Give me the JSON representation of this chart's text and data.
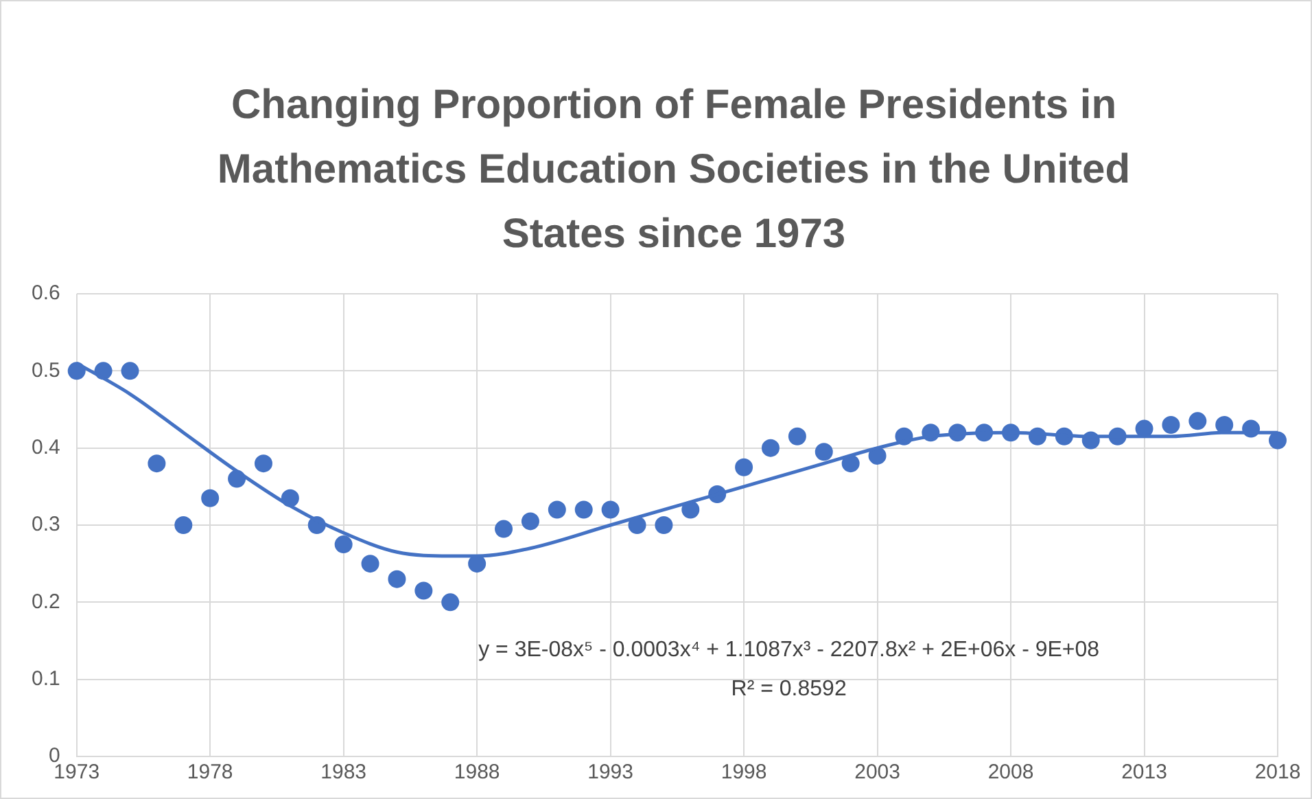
{
  "chart_data": {
    "type": "scatter",
    "title": "Changing Proportion of Female Presidents in Mathematics Education Societies in the United States since 1973",
    "x": [
      1973,
      1974,
      1975,
      1976,
      1977,
      1978,
      1979,
      1980,
      1981,
      1982,
      1983,
      1984,
      1985,
      1986,
      1987,
      1988,
      1989,
      1990,
      1991,
      1992,
      1993,
      1994,
      1995,
      1996,
      1997,
      1998,
      1999,
      2000,
      2001,
      2002,
      2003,
      2004,
      2005,
      2006,
      2007,
      2008,
      2009,
      2010,
      2011,
      2012,
      2013,
      2014,
      2015,
      2016,
      2017,
      2018
    ],
    "series": [
      {
        "color": "#4472c4",
        "values": [
          0.5,
          0.5,
          0.5,
          0.38,
          0.3,
          0.335,
          0.36,
          0.38,
          0.335,
          0.3,
          0.275,
          0.25,
          0.23,
          0.215,
          0.2,
          0.25,
          0.295,
          0.305,
          0.32,
          0.32,
          0.32,
          0.3,
          0.3,
          0.32,
          0.34,
          0.375,
          0.4,
          0.415,
          0.395,
          0.38,
          0.39,
          0.415,
          0.42,
          0.42,
          0.42,
          0.42,
          0.415,
          0.415,
          0.41,
          0.415,
          0.425,
          0.43,
          0.435,
          0.43,
          0.425,
          0.41
        ]
      },
      {
        "type": "line",
        "marker": "none",
        "color": "#4472c4",
        "x": [
          1973,
          1975,
          1977,
          1979,
          1981,
          1983,
          1985,
          1987,
          1988,
          1990,
          1993,
          1996,
          1999,
          2001,
          2003,
          2005,
          2008,
          2011,
          2014,
          2016,
          2018
        ],
        "values": [
          0.51,
          0.47,
          0.42,
          0.37,
          0.325,
          0.29,
          0.265,
          0.26,
          0.26,
          0.27,
          0.3,
          0.33,
          0.36,
          0.38,
          0.4,
          0.415,
          0.42,
          0.415,
          0.415,
          0.42,
          0.42
        ]
      }
    ],
    "xlim": [
      1973,
      2018
    ],
    "xticks": [
      1973,
      1978,
      1983,
      1988,
      1993,
      1998,
      2003,
      2008,
      2013,
      2018
    ],
    "ylim": [
      0,
      0.6
    ],
    "yticks": [
      0,
      0.1,
      0.2,
      0.3,
      0.4,
      0.5,
      0.6
    ],
    "grid": true,
    "legend": false,
    "marker": "circle",
    "annotations": [
      "y = 3E-08x⁵ - 0.0003x⁴ + 1.1087x³ - 2207.8x² + 2E+06x - 9E+08",
      "R² = 0.8592"
    ]
  }
}
